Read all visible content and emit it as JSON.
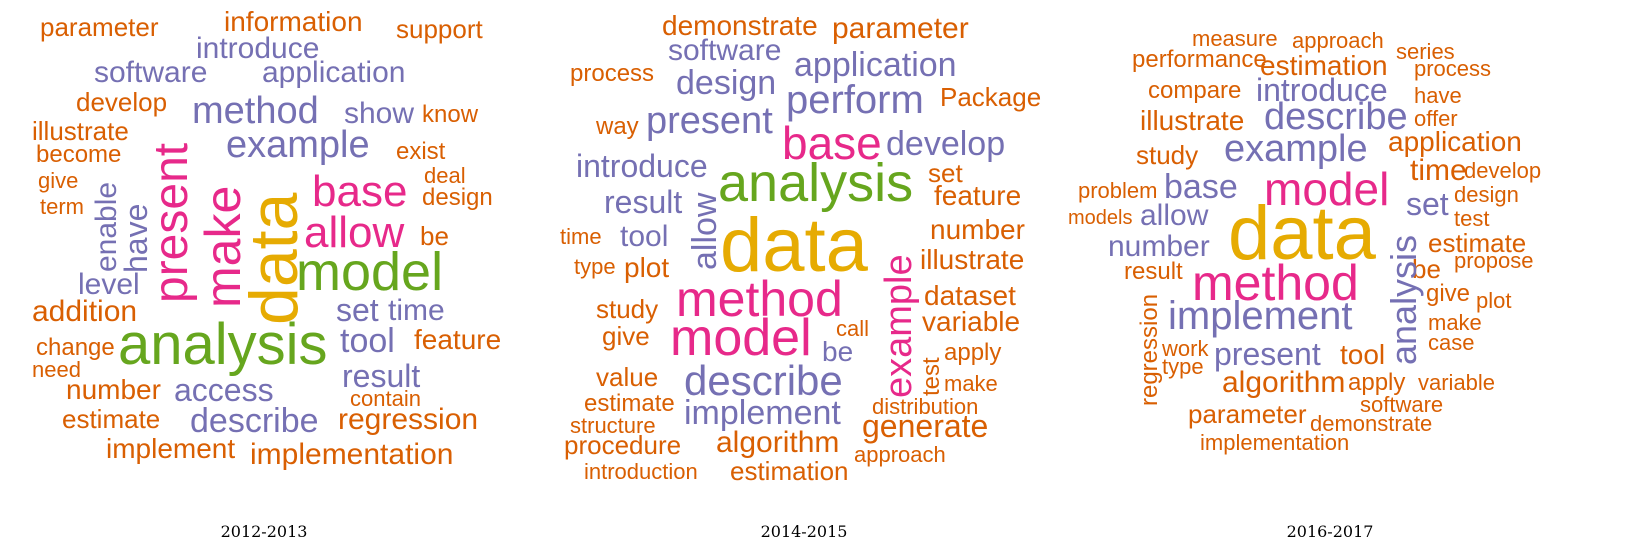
{
  "colors": {
    "orange": "#d95f02",
    "purple": "#7570b3",
    "pink": "#e7298a",
    "green": "#66a61e",
    "gold": "#e6ab02"
  },
  "panels": [
    {
      "caption": "2012-2013",
      "words": [
        "parameter",
        "information",
        "support",
        "introduce",
        "software",
        "application",
        "develop",
        "method",
        "show",
        "know",
        "illustrate",
        "example",
        "exist",
        "become",
        "present",
        "give",
        "deal",
        "design",
        "term",
        "enable",
        "base",
        "make",
        "have",
        "data",
        "allow",
        "be",
        "model",
        "level",
        "addition",
        "set",
        "time",
        "tool",
        "feature",
        "change",
        "analysis",
        "need",
        "result",
        "number",
        "access",
        "contain",
        "estimate",
        "describe",
        "regression",
        "implement",
        "implementation"
      ]
    },
    {
      "caption": "2014-2015",
      "words": [
        "demonstrate",
        "parameter",
        "software",
        "process",
        "design",
        "application",
        "perform",
        "Package",
        "way",
        "present",
        "base",
        "develop",
        "introduce",
        "analysis",
        "set",
        "feature",
        "result",
        "allow",
        "time",
        "tool",
        "data",
        "number",
        "type",
        "plot",
        "illustrate",
        "method",
        "example",
        "dataset",
        "study",
        "call",
        "variable",
        "give",
        "model",
        "be",
        "apply",
        "test",
        "value",
        "describe",
        "make",
        "estimate",
        "distribution",
        "structure",
        "implement",
        "generate",
        "procedure",
        "algorithm",
        "approach",
        "introduction",
        "estimation"
      ]
    },
    {
      "caption": "2016-2017",
      "words": [
        "measure",
        "approach",
        "series",
        "performance",
        "estimation",
        "process",
        "compare",
        "introduce",
        "have",
        "illustrate",
        "describe",
        "offer",
        "application",
        "study",
        "example",
        "time",
        "develop",
        "problem",
        "base",
        "model",
        "design",
        "models",
        "allow",
        "set",
        "test",
        "number",
        "data",
        "estimate",
        "result",
        "be",
        "propose",
        "method",
        "analysis",
        "give",
        "plot",
        "regression",
        "implement",
        "make",
        "case",
        "work",
        "present",
        "tool",
        "type",
        "algorithm",
        "apply",
        "variable",
        "software",
        "parameter",
        "demonstrate",
        "implementation"
      ]
    }
  ]
}
